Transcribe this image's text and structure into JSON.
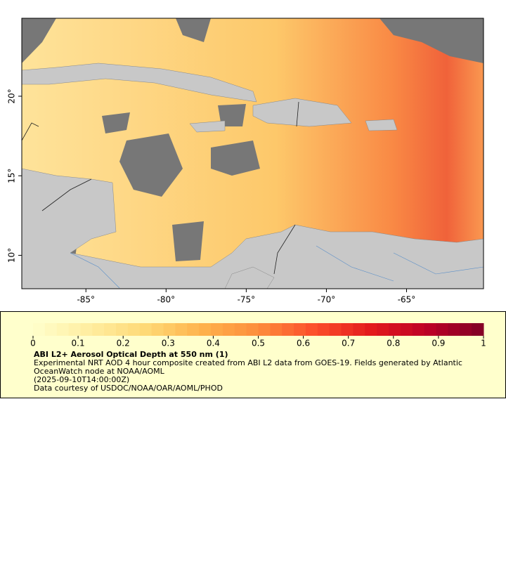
{
  "map": {
    "xlim": [
      -89,
      -60.2
    ],
    "ylim": [
      7.9,
      24.9
    ],
    "xticks": [
      {
        "value": -85,
        "label": "-85°"
      },
      {
        "value": -80,
        "label": "-80°"
      },
      {
        "value": -75,
        "label": "-75°"
      },
      {
        "value": -70,
        "label": "-70°"
      },
      {
        "value": -65,
        "label": "-65°"
      }
    ],
    "yticks": [
      {
        "value": 10,
        "label": "10°"
      },
      {
        "value": 15,
        "label": "15°"
      },
      {
        "value": 20,
        "label": "20°"
      }
    ]
  },
  "colorbar": {
    "lim": [
      0,
      1
    ],
    "ticks": [
      0,
      0.1,
      0.2,
      0.3,
      0.4,
      0.5,
      0.6,
      0.7,
      0.8,
      0.9,
      1
    ],
    "colors": [
      "#ffffcc",
      "#ffeda0",
      "#fed976",
      "#feb24c",
      "#fd8d3c",
      "#fc4e2a",
      "#e31a1c",
      "#bd0026",
      "#800026"
    ]
  },
  "legend": {
    "title": "ABI L2+ Aerosol Optical Depth at 550 nm (1)",
    "description": "Experimental NRT AOD 4 hour composite created from ABI L2 data from GOES-19. Fields generated by Atlantic OceanWatch node at NOAA/AOML",
    "time": "(2025-09-10T14:00:00Z)",
    "credit": "Data courtesy of USDOC/NOAA/OAR/AOML/PHOD"
  }
}
